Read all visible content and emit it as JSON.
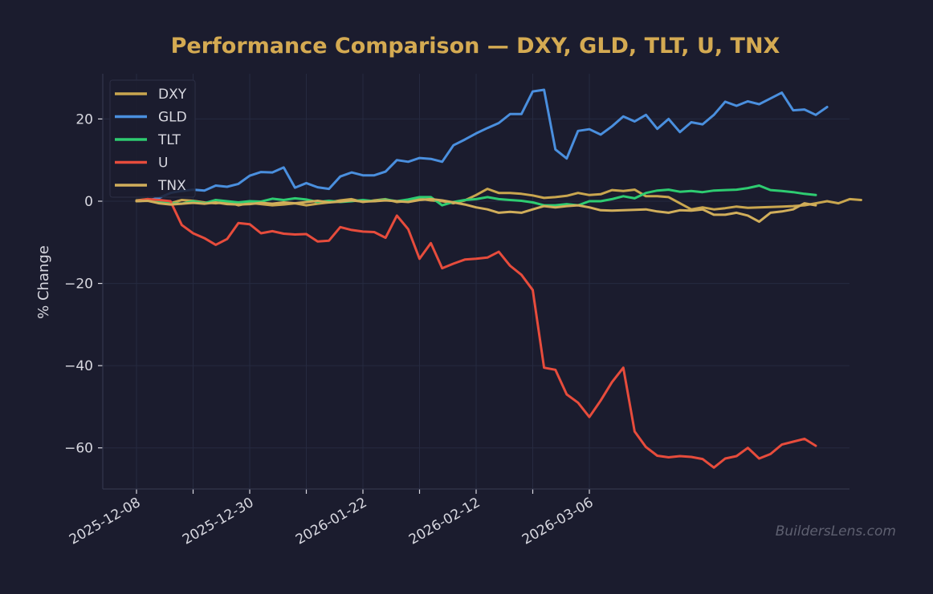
{
  "colors": {
    "background": "#1b1c2e",
    "title": "#d4aa52",
    "text": "#d8d8e0",
    "grid": "#262a40",
    "axis": "#33364c",
    "watermark": "#5e6070"
  },
  "chart_data": {
    "type": "line",
    "title": "Performance Comparison — DXY, GLD, TLT, U, TNX",
    "xlabel": "",
    "ylabel": "% Change",
    "ylim": [
      -70,
      31
    ],
    "yticks": [
      -60,
      -40,
      -20,
      0,
      20
    ],
    "ytick_labels": [
      "−60",
      "−40",
      "−20",
      "0",
      "20"
    ],
    "xticks": [
      {
        "index": 0,
        "label": "2025-12-08"
      },
      {
        "index": 5,
        "label": ""
      },
      {
        "index": 10,
        "label": "2025-12-30"
      },
      {
        "index": 15,
        "label": ""
      },
      {
        "index": 20,
        "label": "2026-01-22"
      },
      {
        "index": 25,
        "label": ""
      },
      {
        "index": 30,
        "label": "2026-02-12"
      },
      {
        "index": 35,
        "label": ""
      },
      {
        "index": 40,
        "label": "2026-03-06"
      }
    ],
    "grid": true,
    "legend_position": "upper-left",
    "watermark": "BuildersLens.com",
    "series": [
      {
        "name": "DXY",
        "color": "#c9a64f",
        "values": [
          0.2,
          0.5,
          -0.2,
          -0.5,
          0.3,
          0.1,
          -0.3,
          -0.5,
          -0.2,
          -1.0,
          -0.4,
          -0.7,
          -1.0,
          -0.8,
          -0.5,
          -1.0,
          -0.6,
          -0.3,
          0.2,
          0.5,
          -0.2,
          0.2,
          0.5,
          -0.2,
          0.1,
          0.6,
          0.2,
          0.0,
          -0.5,
          0.2,
          1.5,
          3.0,
          2.0,
          2.0,
          1.8,
          1.4,
          0.8,
          1.0,
          1.3,
          2.0,
          1.5,
          1.7,
          2.7,
          2.5,
          2.8,
          1.2,
          1.2,
          1.0,
          -0.5,
          -2.0,
          -1.5,
          -2.0,
          -1.7,
          -1.3,
          -1.6,
          -1.5,
          -1.4,
          -1.3,
          -1.2,
          -1.0,
          -0.5,
          0.0,
          -0.5,
          0.5,
          0.3
        ]
      },
      {
        "name": "GLD",
        "color": "#4a8fde",
        "values": [
          0.0,
          0.2,
          0.8,
          2.0,
          2.5,
          2.8,
          2.6,
          3.8,
          3.5,
          4.2,
          6.2,
          7.1,
          7.0,
          8.2,
          3.3,
          4.4,
          3.4,
          3.0,
          6.0,
          7.0,
          6.3,
          6.3,
          7.2,
          10.0,
          9.6,
          10.5,
          10.3,
          9.6,
          13.6,
          15.0,
          16.5,
          17.8,
          19.0,
          21.2,
          21.2,
          26.7,
          27.1,
          12.6,
          10.4,
          17.1,
          17.5,
          16.2,
          18.2,
          20.6,
          19.4,
          21.0,
          17.6,
          20.0,
          16.8,
          19.2,
          18.7,
          21.0,
          24.2,
          23.2,
          24.3,
          23.6,
          25.0,
          26.4,
          22.1,
          22.3,
          21.0,
          22.9
        ]
      },
      {
        "name": "TLT",
        "color": "#2ecc71",
        "values": [
          0.0,
          0.2,
          -0.3,
          -0.5,
          -0.6,
          0.0,
          -0.5,
          0.3,
          0.0,
          -0.3,
          0.0,
          -0.1,
          0.6,
          0.3,
          0.7,
          0.4,
          -0.2,
          0.1,
          -0.2,
          0.0,
          0.3,
          0.0,
          0.4,
          0.0,
          0.4,
          1.0,
          1.0,
          -1.0,
          -0.2,
          0.3,
          0.5,
          1.0,
          0.5,
          0.3,
          0.1,
          -0.3,
          -1.0,
          -1.0,
          -0.7,
          -1.0,
          0.0,
          0.0,
          0.5,
          1.2,
          0.7,
          2.0,
          2.6,
          2.8,
          2.3,
          2.5,
          2.2,
          2.6,
          2.7,
          2.8,
          3.2,
          3.8,
          2.7,
          2.5,
          2.2,
          1.8,
          1.5
        ]
      },
      {
        "name": "U",
        "color": "#e74c3c",
        "values": [
          0.0,
          0.5,
          0.3,
          0.0,
          -5.8,
          -7.8,
          -9.0,
          -10.6,
          -9.2,
          -5.3,
          -5.6,
          -7.8,
          -7.3,
          -7.9,
          -8.1,
          -8.0,
          -9.8,
          -9.6,
          -6.3,
          -7.0,
          -7.4,
          -7.5,
          -8.9,
          -3.5,
          -6.8,
          -14.0,
          -10.2,
          -16.3,
          -15.2,
          -14.2,
          -14.0,
          -13.7,
          -12.3,
          -15.7,
          -17.9,
          -21.6,
          -40.5,
          -41.0,
          -47.0,
          -49.0,
          -52.5,
          -48.5,
          -44.0,
          -40.5,
          -56.0,
          -59.8,
          -61.9,
          -62.3,
          -62.0,
          -62.2,
          -62.7,
          -64.8,
          -62.6,
          -62.0,
          -60.0,
          -62.6,
          -61.5,
          -59.2,
          -58.5,
          -57.8,
          -59.5
        ]
      },
      {
        "name": "TNX",
        "color": "#d1ae5b",
        "values": [
          0.0,
          0.1,
          -0.5,
          -0.8,
          -0.6,
          -0.4,
          -0.6,
          -0.3,
          -0.7,
          -0.8,
          -0.7,
          -0.4,
          -0.6,
          -0.3,
          -0.5,
          -0.2,
          0.1,
          -0.3,
          -0.1,
          0.2,
          -0.1,
          0.0,
          0.2,
          0.0,
          -0.2,
          0.3,
          0.5,
          0.2,
          -0.3,
          -0.8,
          -1.5,
          -2.0,
          -2.8,
          -2.6,
          -2.8,
          -2.0,
          -1.2,
          -1.5,
          -1.2,
          -1.0,
          -1.5,
          -2.2,
          -2.3,
          -2.2,
          -2.1,
          -2.0,
          -2.5,
          -2.8,
          -2.2,
          -2.3,
          -2.0,
          -3.3,
          -3.3,
          -2.8,
          -3.5,
          -5.0,
          -2.8,
          -2.5,
          -2.0,
          -0.5,
          -1.0
        ]
      }
    ]
  }
}
